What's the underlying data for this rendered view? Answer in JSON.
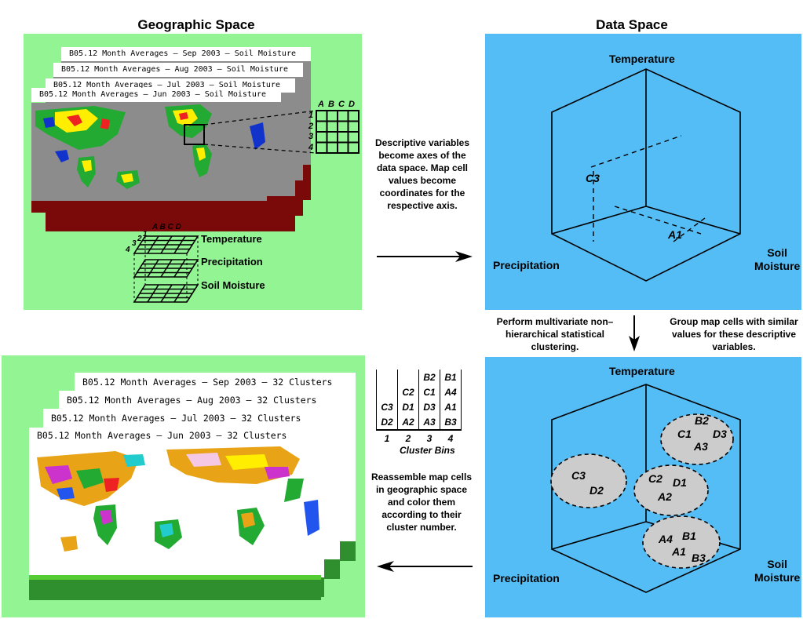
{
  "headings": {
    "geographic": "Geographic Space",
    "data": "Data Space"
  },
  "top_left": {
    "map_titles": [
      "B05.12 Month Averages – Sep 2003 – Soil Moisture",
      "B05.12 Month Averages – Aug 2003 – Soil Moisture",
      "B05.12 Month Averages – Jul 2003 – Soil Moisture",
      "B05.12 Month Averages – Jun 2003 – Soil Moisture"
    ],
    "grid_cols": [
      "A",
      "B",
      "C",
      "D"
    ],
    "grid_rows": [
      "1",
      "2",
      "3",
      "4"
    ],
    "stack_cols": "A B C D",
    "stack_rows": [
      "1",
      "2",
      "3",
      "4"
    ],
    "layers": [
      "Temperature",
      "Precipitation",
      "Soil Moisture"
    ]
  },
  "descriptions": {
    "axes": "Descriptive variables become axes of the data space.  Map cell values become coordinates for the respective axis.",
    "cluster_left": "Perform multivariate non–hierarchical statistical clustering.",
    "cluster_right": "Group map cells with similar values for these descriptive variables.",
    "reassemble": "Reassemble map cells in geographic space and color them according to their cluster number."
  },
  "data_space": {
    "temperature": "Temperature",
    "precipitation": "Precipitation",
    "soil": "Soil\nMoisture",
    "c3": "C3",
    "a1": "A1"
  },
  "clusters_space": {
    "temperature": "Temperature",
    "precipitation": "Precipitation",
    "soil": "Soil\nMoisture",
    "groups": [
      [
        "B2",
        "C1",
        "D3",
        "A3"
      ],
      [
        "C3",
        "D2"
      ],
      [
        "C2",
        "D1",
        "A2"
      ],
      [
        "A4",
        "B1",
        "A1",
        "B3"
      ]
    ]
  },
  "cluster_bins": {
    "rows": [
      [
        "",
        "",
        "B2",
        "B1"
      ],
      [
        "",
        "C2",
        "C1",
        "A4"
      ],
      [
        "C3",
        "D1",
        "D3",
        "A1"
      ],
      [
        "D2",
        "A2",
        "A3",
        "B3"
      ]
    ],
    "bins": [
      "1",
      "2",
      "3",
      "4"
    ],
    "caption": "Cluster Bins"
  },
  "bottom_left": {
    "map_titles": [
      "B05.12 Month Averages – Sep 2003 – 32 Clusters",
      "B05.12 Month Averages – Aug 2003 – 32 Clusters",
      "B05.12 Month Averages – Jul 2003 – 32 Clusters",
      "B05.12 Month Averages – Jun 2003 – 32 Clusters"
    ]
  },
  "colors": {
    "green_panel": "#93f493",
    "blue_panel": "#55bdf5",
    "ocean": "#8c8c8c",
    "ice": "#7a0a0a",
    "cluster_ellipse": "#cccccc"
  }
}
